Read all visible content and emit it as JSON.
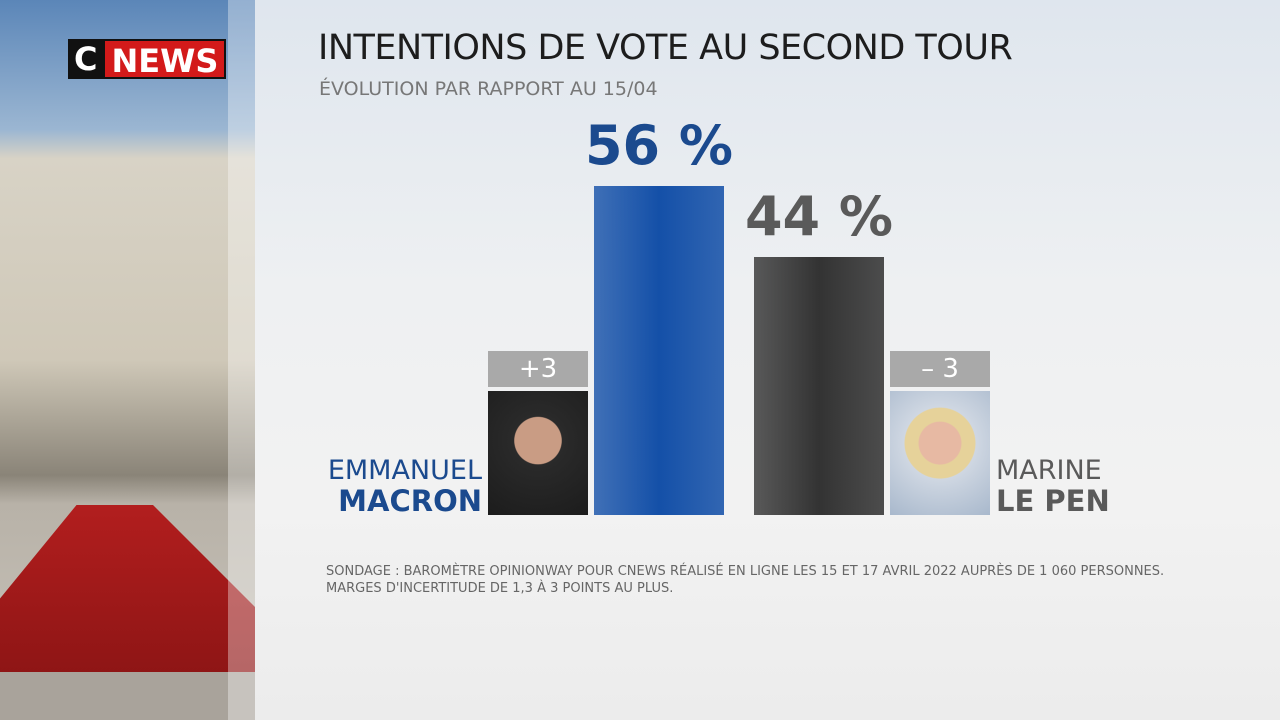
{
  "logo": {
    "c": "C",
    "news": "NEWS"
  },
  "chart_data": {
    "type": "bar",
    "title": "INTENTIONS DE VOTE AU SECOND TOUR",
    "subtitle": "ÉVOLUTION PAR RAPPORT AU 15/04",
    "first_names": [
      "EMMANUEL",
      "MARINE"
    ],
    "last_names": [
      "MACRON",
      "LE PEN"
    ],
    "values": [
      56,
      44
    ],
    "value_labels": [
      "56 %",
      "44 %"
    ],
    "colors": [
      "#1450a8",
      "#333333"
    ],
    "label_colors": [
      "#1b4a8e",
      "#5a5a5a"
    ],
    "changes": [
      3,
      -3
    ],
    "change_labels": [
      "+3",
      "– 3"
    ],
    "note": "SONDAGE : BAROMÈTRE OPINIONWAY POUR CNEWS RÉALISÉ EN LIGNE LES 15 ET 17 AVRIL 2022 AUPRÈS DE 1 060 PERSONNES. MARGES D'INCERTITUDE DE 1,3 À 3 POINTS AU PLUS."
  }
}
